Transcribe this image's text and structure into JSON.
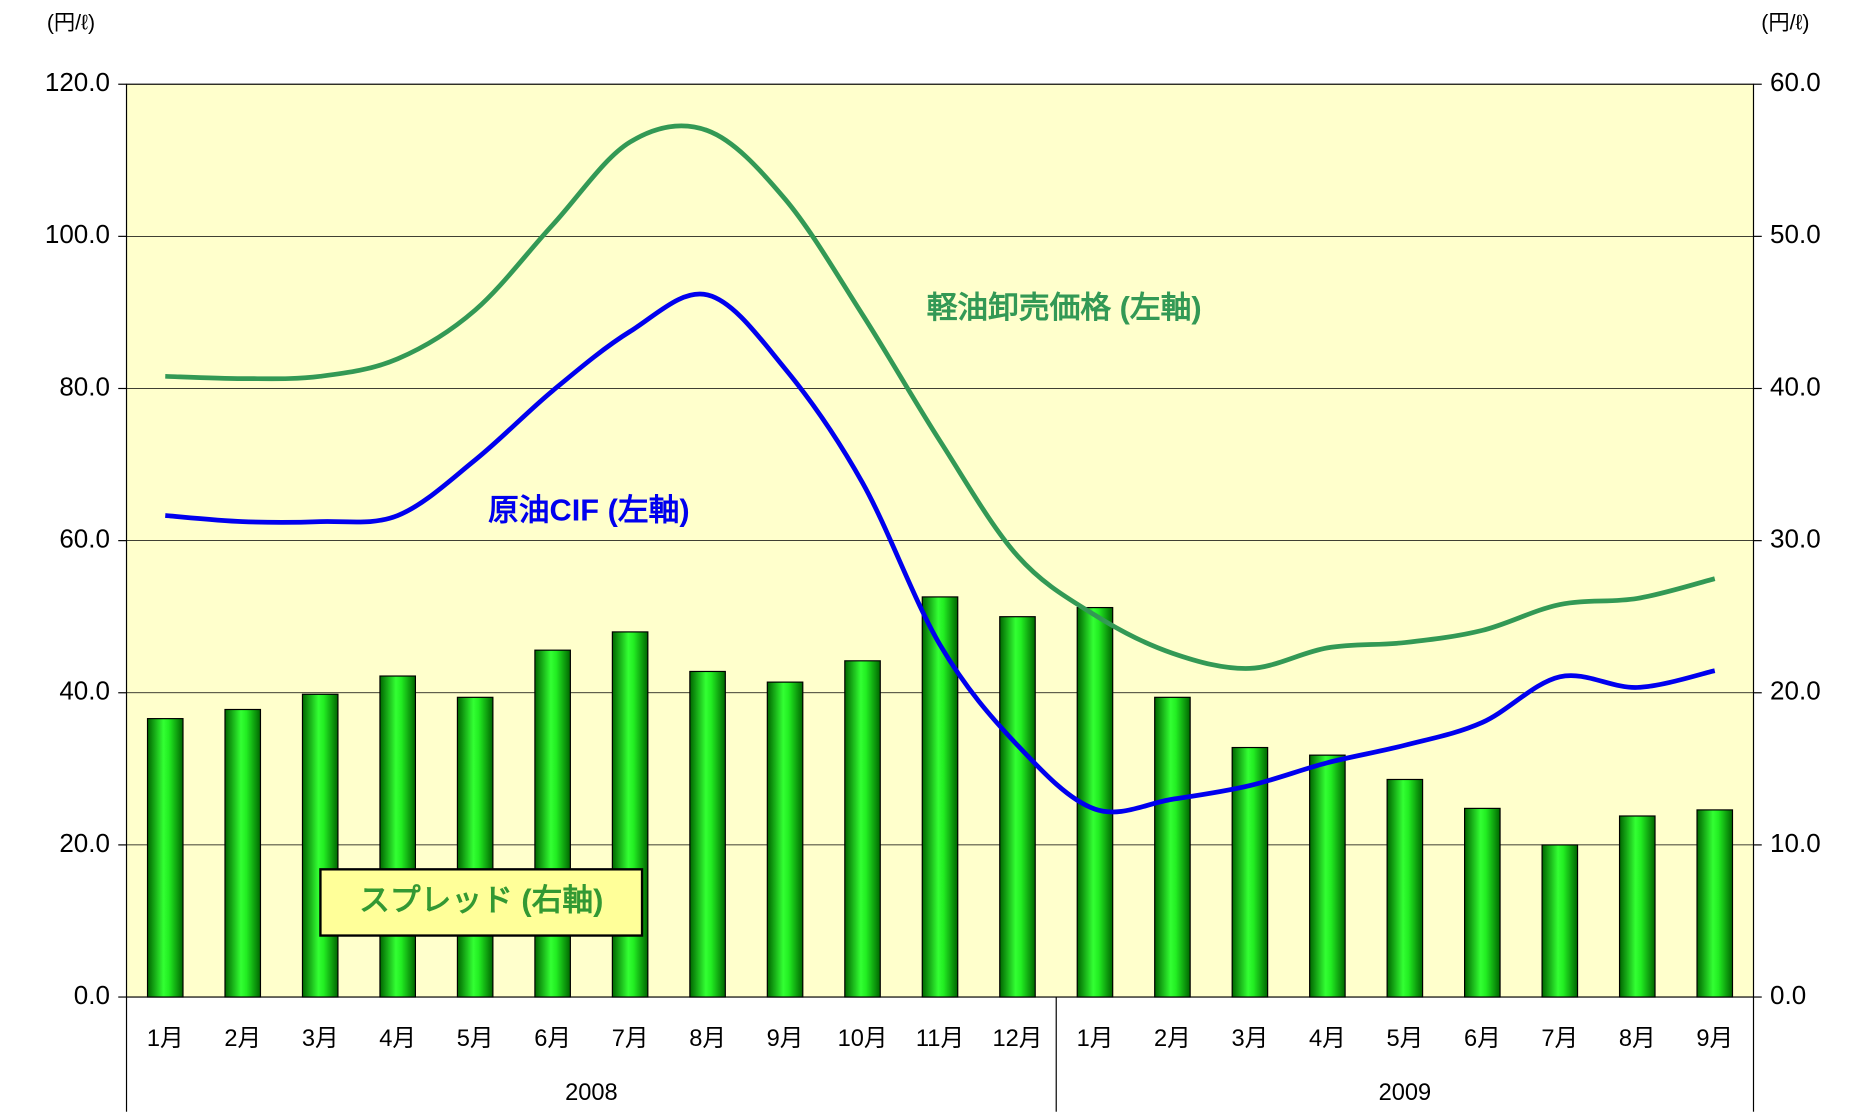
{
  "chart_data": {
    "type": "combo",
    "y_label": "(円/ℓ)",
    "y2_label": "(円/ℓ)",
    "categories": [
      "1月",
      "2月",
      "3月",
      "4月",
      "5月",
      "6月",
      "7月",
      "8月",
      "9月",
      "10月",
      "11月",
      "12月",
      "1月",
      "2月",
      "3月",
      "4月",
      "5月",
      "6月",
      "7月",
      "8月",
      "9月"
    ],
    "groups": [
      {
        "label": "2008",
        "span": 12
      },
      {
        "label": "2009",
        "span": 9
      }
    ],
    "ylim": [
      0,
      120
    ],
    "yticks": [
      {
        "value": 0,
        "label": "0.0"
      },
      {
        "value": 20,
        "label": "20.0"
      },
      {
        "value": 40,
        "label": "40.0"
      },
      {
        "value": 60,
        "label": "60.0"
      },
      {
        "value": 80,
        "label": "80.0"
      },
      {
        "value": 100,
        "label": "100.0"
      },
      {
        "value": 120,
        "label": "120.0"
      }
    ],
    "y2lim": [
      0,
      60
    ],
    "y2ticks": [
      {
        "value": 0,
        "label": "0.0"
      },
      {
        "value": 10,
        "label": "10.0"
      },
      {
        "value": 20,
        "label": "20.0"
      },
      {
        "value": 30,
        "label": "30.0"
      },
      {
        "value": 40,
        "label": "40.0"
      },
      {
        "value": 50,
        "label": "50.0"
      },
      {
        "value": 60,
        "label": "60.0"
      }
    ],
    "background": "#ffffcc",
    "series": [
      {
        "name": "スプレッド (右軸)",
        "type": "bar",
        "axis": "y2",
        "color": "#00dd00",
        "values": [
          18.3,
          18.9,
          19.9,
          21.1,
          19.7,
          22.8,
          24.0,
          21.4,
          20.7,
          22.1,
          26.3,
          25.0,
          25.6,
          19.7,
          16.4,
          15.9,
          14.3,
          12.4,
          10.0,
          11.9,
          12.3
        ]
      },
      {
        "name": "軽油卸売価格 (左軸)",
        "type": "line",
        "axis": "y",
        "color": "#339955",
        "values": [
          81.6,
          81.3,
          81.6,
          83.9,
          90.3,
          101.5,
          112.4,
          113.9,
          104.9,
          89.7,
          73.1,
          58.0,
          50.2,
          45.2,
          43.2,
          45.9,
          46.6,
          48.2,
          51.6,
          52.4,
          55.0
        ]
      },
      {
        "name": "原油CIF (左軸)",
        "type": "line",
        "axis": "y",
        "color": "#0000ee",
        "values": [
          63.3,
          62.5,
          62.5,
          63.3,
          70.6,
          79.7,
          87.5,
          92.3,
          82.6,
          67.6,
          46.3,
          33.1,
          24.7,
          26.0,
          27.8,
          30.8,
          33.1,
          36.1,
          42.1,
          40.7,
          42.9
        ]
      }
    ]
  }
}
